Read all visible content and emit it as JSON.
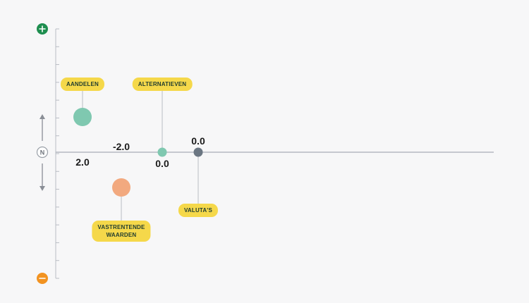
{
  "colors": {
    "plus": "#1e8e4f",
    "minus": "#f29321",
    "axis": "#b9bcc4",
    "tag_bg": "#f5d84a",
    "tag_text": "#1f3b2f"
  },
  "axis": {
    "top_icon": "plus-icon",
    "bottom_icon": "minus-icon",
    "neutral_label": "N",
    "ylim": [
      -7,
      7
    ]
  },
  "chart_data": {
    "type": "scatter",
    "title": "",
    "xlabel": "",
    "ylabel": "",
    "grid": false,
    "legend": "none",
    "ylim": [
      -7,
      7
    ],
    "points": [
      {
        "label": "AANDELEN",
        "value": 2.0,
        "value_text": "2.0",
        "size": "large",
        "color": "#7fc8b0"
      },
      {
        "label": "VASTRENTENDE\nWAARDEN",
        "value": -2.0,
        "value_text": "-2.0",
        "size": "large",
        "color": "#f2a97f"
      },
      {
        "label": "ALTERNATIEVEN",
        "value": 0.0,
        "value_text": "0.0",
        "size": "small",
        "color": "#7fc8b0"
      },
      {
        "label": "VALUTA'S",
        "value": 0.0,
        "value_text": "0.0",
        "size": "small",
        "color": "#6b7682"
      }
    ]
  }
}
